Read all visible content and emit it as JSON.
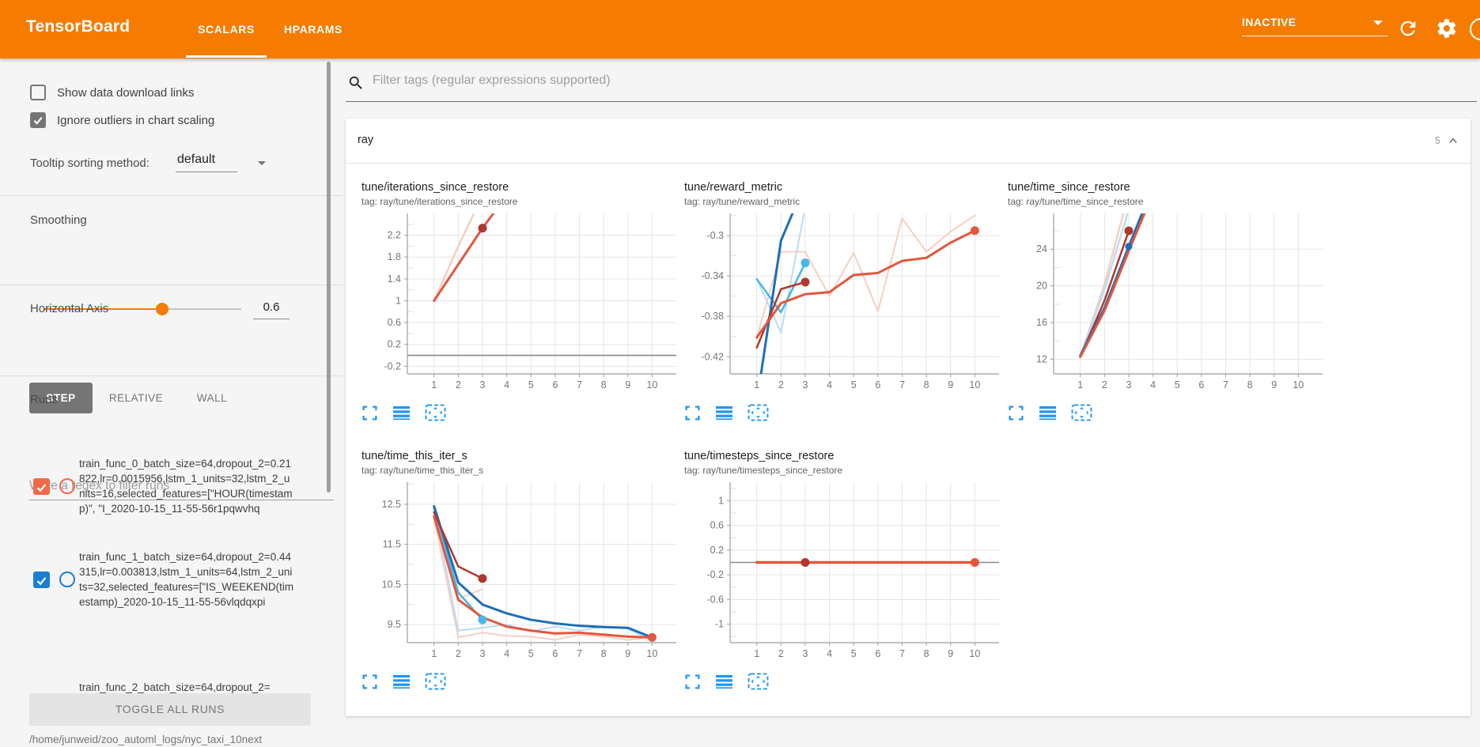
{
  "header": {
    "title": "TensorBoard",
    "tabs": [
      {
        "label": "SCALARS",
        "active": true
      },
      {
        "label": "HPARAMS",
        "active": false
      }
    ],
    "status": "INACTIVE",
    "colors": {
      "header_orange": "#f57c00",
      "icon_blue": "#2196f3"
    }
  },
  "sidebar": {
    "checkboxes": [
      {
        "label": "Show data download links",
        "checked": false
      },
      {
        "label": "Ignore outliers in chart scaling",
        "checked": true
      }
    ],
    "tooltip_sorting": {
      "label": "Tooltip sorting method:",
      "value": "default"
    },
    "smoothing": {
      "label": "Smoothing",
      "value": "0.6",
      "fraction": 0.6
    },
    "horizontal_axis": {
      "label": "Horizontal Axis",
      "options": [
        {
          "label": "STEP",
          "active": true
        },
        {
          "label": "RELATIVE",
          "active": false
        },
        {
          "label": "WALL",
          "active": false
        }
      ]
    },
    "runs": {
      "label": "Runs",
      "filter_placeholder": "Write a regex to filter runs",
      "items": [
        {
          "name": "train_func_0_batch_size=64,dropout_2=0.21822,lr=0.0015956,lstm_1_units=32,lstm_2_units=16,selected_features=[\"HOUR(timestamp)\", \"I_2020-10-15_11-55-56r1pqwvhq",
          "checked": true,
          "color": "#f4684a"
        },
        {
          "name": "train_func_1_batch_size=64,dropout_2=0.44315,lr=0.003813,lstm_1_units=64,lstm_2_units=32,selected_features=[\"IS_WEEKEND(timestamp)_2020-10-15_11-55-56vlqdqxpi",
          "checked": true,
          "color": "#1a7fd4"
        },
        {
          "name": "train_func_2_batch_size=64,dropout_2=",
          "partial": true
        }
      ],
      "toggle_all_label": "TOGGLE ALL RUNS",
      "log_dir": "/home/junweid/zoo_automl_logs/nyc_taxi_10next"
    }
  },
  "main": {
    "filter_placeholder": "Filter tags (regular expressions supported)",
    "section": {
      "name": "ray",
      "count": "5"
    }
  },
  "chart_data": [
    {
      "type": "line",
      "title": "tune/iterations_since_restore",
      "tag": "tag: ray/tune/iterations_since_restore",
      "xlabel": "step",
      "xlim": [
        -0.1,
        11.0
      ],
      "xticks": [
        1,
        2,
        3,
        4,
        5,
        6,
        7,
        8,
        9,
        10
      ],
      "ylim": [
        -0.34,
        2.6
      ],
      "zero_line": true,
      "grid": true,
      "legend": "none",
      "yticks": [
        {
          "v": 2.2,
          "l": "2.2"
        },
        {
          "v": 1.8,
          "l": "1.8"
        },
        {
          "v": 1.4,
          "l": "1.4"
        },
        {
          "v": 1.0,
          "l": "1"
        },
        {
          "v": 0.6,
          "l": "0.6"
        },
        {
          "v": 0.2,
          "l": "0.2"
        },
        {
          "v": -0.2,
          "l": "-0.2"
        }
      ],
      "series": [
        {
          "id": "light-pink-raw",
          "color": "#f6cfc2",
          "width": 2.5,
          "points": [
            [
              1,
              1
            ],
            [
              2,
              2
            ],
            [
              2.65,
              2.6
            ]
          ]
        },
        {
          "id": "dark-red-smoothed",
          "color": "#b0392b",
          "width": 2.5,
          "points": [
            [
              1,
              1
            ],
            [
              2,
              1.665
            ],
            [
              3,
              2.33
            ]
          ],
          "dot": [
            3,
            2.33
          ]
        },
        {
          "id": "orange-smoothed",
          "color": "#e2573d",
          "width": 3,
          "points": [
            [
              1,
              1
            ],
            [
              2,
              1.665
            ],
            [
              3,
              2.33
            ],
            [
              3.45,
              2.6
            ]
          ]
        }
      ]
    },
    {
      "type": "line",
      "title": "tune/reward_metric",
      "tag": "tag: ray/tune/reward_metric",
      "xlabel": "step",
      "xlim": [
        -0.1,
        11.0
      ],
      "xticks": [
        1,
        2,
        3,
        4,
        5,
        6,
        7,
        8,
        9,
        10
      ],
      "ylim": [
        -0.437,
        -0.278
      ],
      "zero_line": false,
      "grid": true,
      "legend": "none",
      "yticks": [
        {
          "v": -0.3,
          "l": "-0.3"
        },
        {
          "v": -0.34,
          "l": "-0.34"
        },
        {
          "v": -0.38,
          "l": "-0.38"
        },
        {
          "v": -0.42,
          "l": "-0.42"
        }
      ],
      "series": [
        {
          "id": "light-pink-raw",
          "color": "#f6cfc2",
          "width": 2,
          "points": [
            [
              1,
              -0.401
            ],
            [
              2,
              -0.316
            ],
            [
              3,
              -0.316
            ],
            [
              4,
              -0.36
            ],
            [
              5,
              -0.317
            ],
            [
              6,
              -0.375
            ],
            [
              7,
              -0.283
            ],
            [
              8,
              -0.316
            ],
            [
              9,
              -0.296
            ],
            [
              10,
              -0.28
            ]
          ]
        },
        {
          "id": "light-blue-raw",
          "color": "#bcdcf5",
          "width": 2,
          "points": [
            [
              1,
              -0.343
            ],
            [
              2,
              -0.396
            ],
            [
              3,
              -0.272
            ]
          ]
        },
        {
          "id": "cyan-smoothed",
          "color": "#45b8e8",
          "width": 2.5,
          "points": [
            [
              1,
              -0.343
            ],
            [
              2,
              -0.376
            ],
            [
              3,
              -0.327
            ]
          ],
          "dot": [
            3,
            -0.327
          ]
        },
        {
          "id": "dark-blue-smoothed",
          "color": "#1c6fb8",
          "width": 3,
          "points": [
            [
              1,
              -0.465
            ],
            [
              2,
              -0.305
            ],
            [
              2.65,
              -0.268
            ]
          ]
        },
        {
          "id": "dark-red-smoothed",
          "color": "#b0392b",
          "width": 2.5,
          "points": [
            [
              1,
              -0.411
            ],
            [
              2,
              -0.353
            ],
            [
              3,
              -0.346
            ]
          ],
          "dot": [
            3,
            -0.346
          ]
        },
        {
          "id": "orange-smoothed",
          "color": "#e2573d",
          "width": 3,
          "points": [
            [
              1,
              -0.401
            ],
            [
              2,
              -0.367
            ],
            [
              3,
              -0.358
            ],
            [
              4,
              -0.356
            ],
            [
              5,
              -0.339
            ],
            [
              6,
              -0.337
            ],
            [
              7,
              -0.325
            ],
            [
              8,
              -0.322
            ],
            [
              9,
              -0.307
            ],
            [
              10,
              -0.295
            ]
          ],
          "dot": [
            10,
            -0.295
          ]
        }
      ]
    },
    {
      "type": "line",
      "title": "tune/time_since_restore",
      "tag": "tag: ray/tune/time_since_restore",
      "xlabel": "step",
      "xlim": [
        -0.1,
        11.0
      ],
      "xticks": [
        1,
        2,
        3,
        4,
        5,
        6,
        7,
        8,
        9,
        10
      ],
      "ylim": [
        10.4,
        27.9
      ],
      "zero_line": false,
      "grid": true,
      "legend": "none",
      "yticks": [
        {
          "v": 24,
          "l": "24"
        },
        {
          "v": 20,
          "l": "20"
        },
        {
          "v": 16,
          "l": "16"
        },
        {
          "v": 12,
          "l": "12"
        }
      ],
      "series": [
        {
          "id": "light-pink-raw",
          "color": "#f6cfc2",
          "width": 2.5,
          "points": [
            [
              1,
              12.3
            ],
            [
              2,
              20.2
            ],
            [
              2.78,
              27.9
            ]
          ]
        },
        {
          "id": "light-blue-raw",
          "color": "#bcdcf5",
          "width": 2.5,
          "points": [
            [
              1,
              12.4
            ],
            [
              2,
              19.6
            ],
            [
              2.95,
              27.9
            ]
          ]
        },
        {
          "id": "dark-red-smoothed",
          "color": "#b0392b",
          "width": 2.5,
          "points": [
            [
              1,
              12.3
            ],
            [
              2,
              18.4
            ],
            [
              3,
              26.0
            ]
          ],
          "dot": [
            3,
            26.0
          ]
        },
        {
          "id": "dark-blue-smoothed",
          "color": "#1c6fb8",
          "width": 3,
          "points": [
            [
              1,
              12.4
            ],
            [
              2,
              17.6
            ],
            [
              3,
              24.3
            ],
            [
              3.55,
              27.9
            ]
          ],
          "dot": [
            3,
            24.3
          ],
          "dot_r": 4.5
        },
        {
          "id": "orange-smoothed",
          "color": "#e2573d",
          "width": 3,
          "points": [
            [
              1,
              12.25
            ],
            [
              2,
              17.3
            ],
            [
              3,
              23.8
            ],
            [
              3.65,
              27.9
            ]
          ]
        }
      ]
    },
    {
      "type": "line",
      "title": "tune/time_this_iter_s",
      "tag": "tag: ray/tune/time_this_iter_s",
      "xlabel": "step",
      "xlim": [
        -0.1,
        11.0
      ],
      "xticks": [
        1,
        2,
        3,
        4,
        5,
        6,
        7,
        8,
        9,
        10
      ],
      "ylim": [
        9.05,
        13.05
      ],
      "zero_line": false,
      "grid": true,
      "legend": "none",
      "yticks": [
        {
          "v": 12.5,
          "l": "12.5"
        },
        {
          "v": 11.5,
          "l": "11.5"
        },
        {
          "v": 10.5,
          "l": "10.5"
        },
        {
          "v": 9.5,
          "l": "9.5"
        }
      ],
      "series": [
        {
          "id": "light-pink-raw",
          "color": "#f6cfc2",
          "width": 2,
          "points": [
            [
              1,
              12.15
            ],
            [
              2,
              9.18
            ],
            [
              3,
              9.3
            ],
            [
              4,
              9.22
            ],
            [
              5,
              9.2
            ],
            [
              6,
              9.12
            ],
            [
              7,
              9.25
            ],
            [
              8,
              9.2
            ],
            [
              9,
              9.12
            ],
            [
              10,
              9.18
            ]
          ]
        },
        {
          "id": "light-pink-raw-2",
          "color": "#f6cfc2",
          "width": 2,
          "points": [
            [
              1,
              12.15
            ],
            [
              2,
              10.15
            ],
            [
              3,
              10.38
            ]
          ]
        },
        {
          "id": "light-blue-raw",
          "color": "#bcdcf5",
          "width": 2,
          "points": [
            [
              1,
              12.4
            ],
            [
              2,
              9.35
            ],
            [
              3,
              9.42
            ],
            [
              4,
              9.5
            ],
            [
              5,
              9.33
            ],
            [
              6,
              9.45
            ],
            [
              7,
              9.35
            ],
            [
              8,
              9.45
            ],
            [
              9,
              9.4
            ],
            [
              10,
              9.1
            ]
          ]
        },
        {
          "id": "cyan-smoothed",
          "color": "#45b8e8",
          "width": 2.5,
          "points": [
            [
              1,
              12.42
            ],
            [
              2,
              10.3
            ],
            [
              3,
              9.62
            ]
          ],
          "dot": [
            3,
            9.62
          ]
        },
        {
          "id": "dark-blue-smoothed",
          "color": "#1c6fb8",
          "width": 3,
          "points": [
            [
              1,
              12.45
            ],
            [
              2,
              10.55
            ],
            [
              3,
              10.0
            ],
            [
              4,
              9.78
            ],
            [
              5,
              9.62
            ],
            [
              6,
              9.53
            ],
            [
              7,
              9.47
            ],
            [
              8,
              9.44
            ],
            [
              9,
              9.42
            ],
            [
              10,
              9.18
            ]
          ]
        },
        {
          "id": "dark-red-smoothed",
          "color": "#b0392b",
          "width": 2.5,
          "points": [
            [
              1,
              12.3
            ],
            [
              2,
              10.95
            ],
            [
              3,
              10.65
            ]
          ],
          "dot": [
            3,
            10.65
          ]
        },
        {
          "id": "orange-smoothed",
          "color": "#e2573d",
          "width": 3,
          "points": [
            [
              1,
              12.2
            ],
            [
              2,
              10.12
            ],
            [
              3,
              9.68
            ],
            [
              4,
              9.45
            ],
            [
              5,
              9.35
            ],
            [
              6,
              9.28
            ],
            [
              7,
              9.3
            ],
            [
              8,
              9.25
            ],
            [
              9,
              9.2
            ],
            [
              10,
              9.18
            ]
          ],
          "dot": [
            10,
            9.18
          ]
        }
      ]
    },
    {
      "type": "line",
      "title": "tune/timesteps_since_restore",
      "tag": "tag: ray/tune/timesteps_since_restore",
      "xlabel": "step",
      "xlim": [
        -0.1,
        11.0
      ],
      "xticks": [
        1,
        2,
        3,
        4,
        5,
        6,
        7,
        8,
        9,
        10
      ],
      "ylim": [
        -1.3,
        1.3
      ],
      "zero_line": true,
      "grid": true,
      "legend": "none",
      "yticks": [
        {
          "v": 1,
          "l": "1"
        },
        {
          "v": 0.6,
          "l": "0.6"
        },
        {
          "v": 0.2,
          "l": "0.2"
        },
        {
          "v": -0.2,
          "l": "-0.2"
        },
        {
          "v": -0.6,
          "l": "-0.6"
        },
        {
          "v": -1,
          "l": "-1"
        }
      ],
      "series": [
        {
          "id": "dark-red-smoothed",
          "color": "#b0392b",
          "width": 3,
          "points": [
            [
              1,
              0
            ],
            [
              3,
              0
            ]
          ],
          "dot": [
            3,
            0
          ]
        },
        {
          "id": "orange-smoothed",
          "color": "#e2573d",
          "width": 3.5,
          "points": [
            [
              1,
              0
            ],
            [
              10,
              0
            ]
          ],
          "dot": [
            10,
            0
          ]
        }
      ]
    }
  ]
}
